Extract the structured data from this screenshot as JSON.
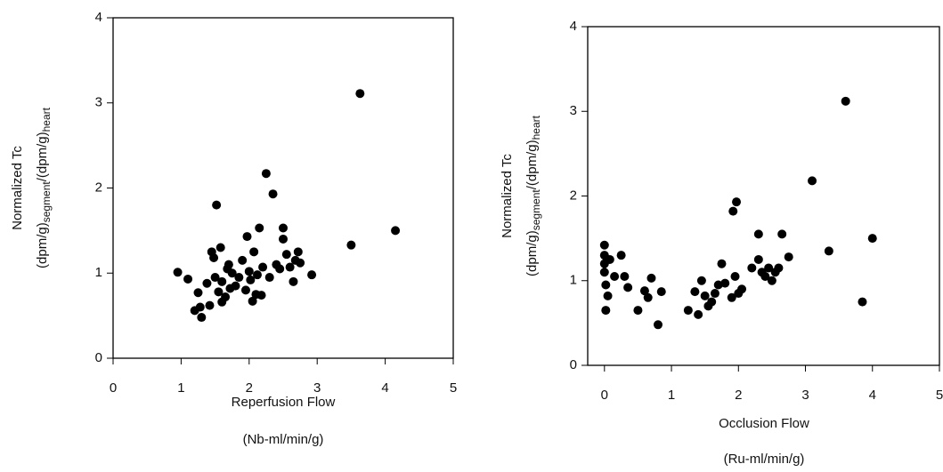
{
  "chart_data": [
    {
      "type": "scatter",
      "xlabel": [
        "Reperfusion Flow",
        "(Nb-ml/min/g)"
      ],
      "ylabel": {
        "line1": "Normalized Tc",
        "line2": [
          "(dpm/g)",
          "segment",
          "/(dpm/g)",
          "heart"
        ]
      },
      "color": "#000000",
      "xlim": [
        0,
        5
      ],
      "ylim": [
        0,
        4
      ],
      "xticks": [
        0,
        1,
        2,
        3,
        4,
        5
      ],
      "yticks": [
        0,
        1,
        2,
        3,
        4
      ],
      "x": [
        0.95,
        1.1,
        1.2,
        1.25,
        1.28,
        1.3,
        1.38,
        1.42,
        1.45,
        1.48,
        1.5,
        1.52,
        1.55,
        1.58,
        1.6,
        1.6,
        1.65,
        1.68,
        1.7,
        1.72,
        1.75,
        1.8,
        1.85,
        1.9,
        1.95,
        1.97,
        2.0,
        2.02,
        2.05,
        2.07,
        2.1,
        2.12,
        2.15,
        2.18,
        2.2,
        2.25,
        2.3,
        2.35,
        2.4,
        2.45,
        2.5,
        2.5,
        2.55,
        2.6,
        2.65,
        2.68,
        2.72,
        2.75,
        2.92,
        3.5,
        3.63,
        4.15
      ],
      "values": [
        1.01,
        0.93,
        0.56,
        0.77,
        0.6,
        0.48,
        0.88,
        0.62,
        1.25,
        1.18,
        0.95,
        1.8,
        0.78,
        1.3,
        0.66,
        0.9,
        0.72,
        1.05,
        1.1,
        0.82,
        1.0,
        0.85,
        0.95,
        1.15,
        0.8,
        1.43,
        1.02,
        0.92,
        0.67,
        1.25,
        0.75,
        0.98,
        1.53,
        0.74,
        1.07,
        2.17,
        0.95,
        1.93,
        1.1,
        1.05,
        1.53,
        1.4,
        1.22,
        1.07,
        0.9,
        1.15,
        1.25,
        1.12,
        0.98,
        1.33,
        3.11,
        1.5
      ]
    },
    {
      "type": "scatter",
      "xlabel": [
        "Occlusion Flow",
        "(Ru-ml/min/g)"
      ],
      "ylabel": {
        "line1": "Normalized Tc",
        "line2": [
          "(dpm/g)",
          "segment",
          "/(dpm/g)",
          "heart"
        ]
      },
      "color": "#000000",
      "xlim": [
        -0.25,
        5
      ],
      "ylim": [
        0,
        4
      ],
      "xticks": [
        0,
        1,
        2,
        3,
        4,
        5
      ],
      "yticks": [
        0,
        1,
        2,
        3,
        4
      ],
      "x": [
        0,
        0,
        0,
        0,
        0.02,
        0.05,
        0.02,
        0.08,
        0.15,
        0.25,
        0.3,
        0.35,
        0.5,
        0.6,
        0.65,
        0.7,
        0.8,
        0.85,
        1.25,
        1.35,
        1.4,
        1.45,
        1.5,
        1.55,
        1.6,
        1.65,
        1.7,
        1.75,
        1.8,
        1.9,
        1.92,
        1.97,
        1.95,
        2.0,
        2.05,
        2.2,
        2.3,
        2.3,
        2.35,
        2.4,
        2.45,
        2.5,
        2.55,
        2.6,
        2.65,
        2.75,
        3.1,
        3.35,
        3.6,
        3.85,
        4.0
      ],
      "values": [
        1.42,
        1.3,
        1.2,
        1.1,
        0.95,
        0.82,
        0.65,
        1.25,
        1.05,
        1.3,
        1.05,
        0.92,
        0.65,
        0.88,
        0.8,
        1.03,
        0.48,
        0.87,
        0.65,
        0.87,
        0.6,
        1.0,
        0.82,
        0.7,
        0.75,
        0.85,
        0.95,
        1.2,
        0.97,
        0.8,
        1.82,
        1.93,
        1.05,
        0.85,
        0.9,
        1.15,
        1.55,
        1.25,
        1.1,
        1.05,
        1.15,
        1.0,
        1.1,
        1.15,
        1.55,
        1.28,
        2.18,
        1.35,
        3.12,
        0.75,
        1.5
      ]
    }
  ]
}
